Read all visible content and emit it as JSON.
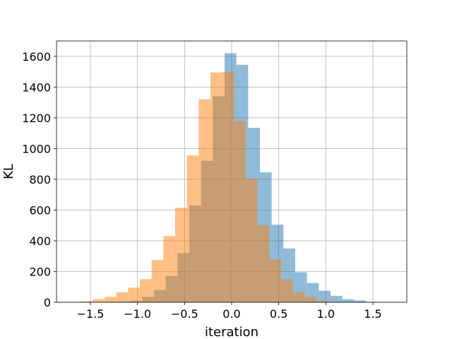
{
  "chart_data": {
    "type": "bar",
    "subtype": "overlaid-histogram",
    "xlabel": "iteration",
    "ylabel": "KL",
    "xlim": [
      -1.86,
      1.86
    ],
    "ylim": [
      0,
      1700
    ],
    "grid": true,
    "xticks": [
      -1.5,
      -1.0,
      -0.5,
      0.0,
      0.5,
      1.0,
      1.5
    ],
    "xtick_labels": [
      "−1.5",
      "−1.0",
      "−0.5",
      "0.0",
      "0.5",
      "1.0",
      "1.5"
    ],
    "yticks": [
      0,
      200,
      400,
      600,
      800,
      1000,
      1200,
      1400,
      1600
    ],
    "ytick_labels": [
      "0",
      "200",
      "400",
      "600",
      "800",
      "1000",
      "1200",
      "1400",
      "1600"
    ],
    "series": [
      {
        "color": "#1f77b4",
        "opacity": 0.5,
        "bins": [
          [
            -1.45,
            -1.325,
            2
          ],
          [
            -1.325,
            -1.2,
            3
          ],
          [
            -1.2,
            -1.075,
            5
          ],
          [
            -1.075,
            -0.95,
            10
          ],
          [
            -0.95,
            -0.825,
            35
          ],
          [
            -0.825,
            -0.7,
            80
          ],
          [
            -0.7,
            -0.575,
            170
          ],
          [
            -0.575,
            -0.45,
            320
          ],
          [
            -0.45,
            -0.325,
            630
          ],
          [
            -0.325,
            -0.2,
            920
          ],
          [
            -0.2,
            -0.075,
            1340
          ],
          [
            -0.075,
            0.05,
            1620
          ],
          [
            0.05,
            0.175,
            1545
          ],
          [
            0.175,
            0.3,
            1135
          ],
          [
            0.3,
            0.425,
            845
          ],
          [
            0.425,
            0.55,
            505
          ],
          [
            0.55,
            0.675,
            350
          ],
          [
            0.675,
            0.8,
            195
          ],
          [
            0.8,
            0.925,
            125
          ],
          [
            0.925,
            1.05,
            75
          ],
          [
            1.05,
            1.175,
            42
          ],
          [
            1.175,
            1.3,
            20
          ],
          [
            1.3,
            1.425,
            12
          ],
          [
            1.425,
            1.55,
            3
          ],
          [
            1.55,
            1.675,
            1
          ]
        ]
      },
      {
        "color": "#ff7f0e",
        "opacity": 0.5,
        "bins": [
          [
            -1.6,
            -1.475,
            6
          ],
          [
            -1.475,
            -1.35,
            20
          ],
          [
            -1.35,
            -1.225,
            35
          ],
          [
            -1.225,
            -1.1,
            65
          ],
          [
            -1.1,
            -0.975,
            95
          ],
          [
            -0.975,
            -0.85,
            150
          ],
          [
            -0.85,
            -0.725,
            275
          ],
          [
            -0.725,
            -0.6,
            430
          ],
          [
            -0.6,
            -0.475,
            615
          ],
          [
            -0.475,
            -0.35,
            955
          ],
          [
            -0.35,
            -0.225,
            1320
          ],
          [
            -0.225,
            -0.1,
            1495
          ],
          [
            -0.1,
            0.025,
            1500
          ],
          [
            0.025,
            0.15,
            1180
          ],
          [
            0.15,
            0.275,
            805
          ],
          [
            0.275,
            0.4,
            500
          ],
          [
            0.4,
            0.525,
            280
          ],
          [
            0.525,
            0.65,
            150
          ],
          [
            0.65,
            0.775,
            65
          ],
          [
            0.775,
            0.9,
            35
          ],
          [
            0.9,
            1.025,
            10
          ],
          [
            1.025,
            1.15,
            3
          ]
        ]
      }
    ]
  }
}
